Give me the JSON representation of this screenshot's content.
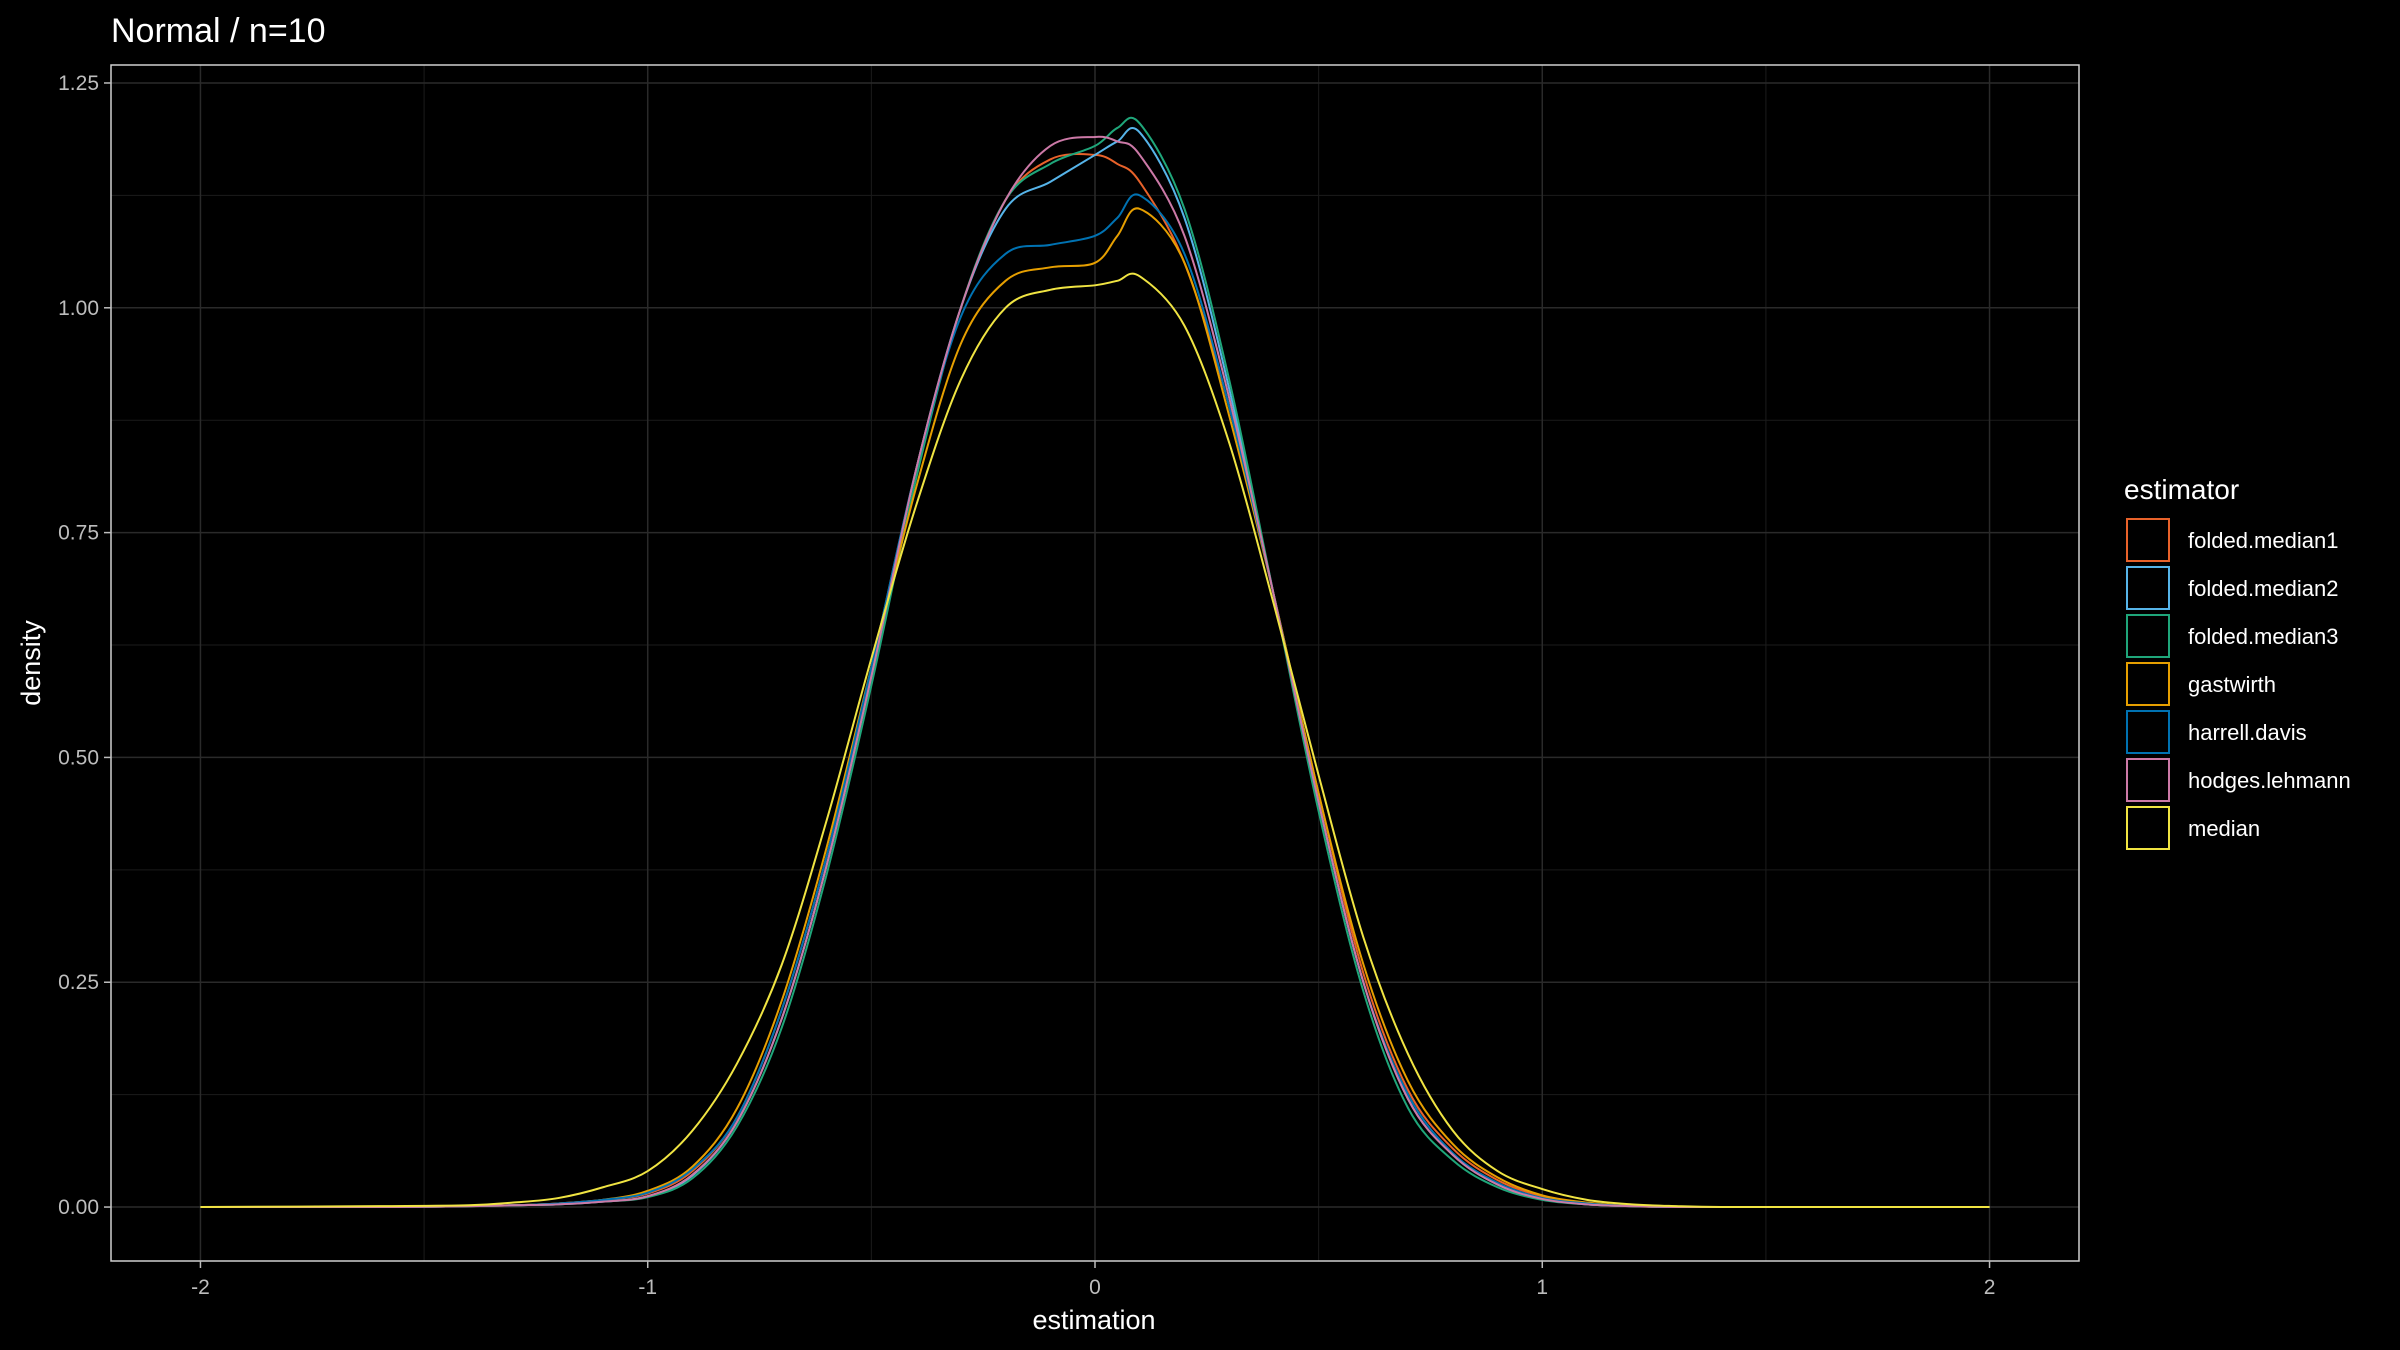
{
  "chart_data": {
    "type": "line",
    "title": "Normal / n=10",
    "xlabel": "estimation",
    "ylabel": "density",
    "xlim": [
      -2.2,
      2.2
    ],
    "ylim": [
      -0.06,
      1.27
    ],
    "x_ticks": [
      -2,
      -1,
      0,
      1,
      2
    ],
    "x_tick_labels": [
      "-2",
      "-1",
      "0",
      "1",
      "2"
    ],
    "y_ticks": [
      0,
      0.25,
      0.5,
      0.75,
      1.0,
      1.25
    ],
    "y_tick_labels": [
      "0.00",
      "0.25",
      "0.50",
      "0.75",
      "1.00",
      "1.25"
    ],
    "grid": true,
    "legend": {
      "title": "estimator",
      "position": "right"
    },
    "x": [
      -2.0,
      -1.6,
      -1.4,
      -1.3,
      -1.2,
      -1.1,
      -1.0,
      -0.9,
      -0.8,
      -0.7,
      -0.6,
      -0.5,
      -0.4,
      -0.3,
      -0.2,
      -0.1,
      0.0,
      0.05,
      0.1,
      0.2,
      0.3,
      0.4,
      0.5,
      0.6,
      0.7,
      0.8,
      0.9,
      1.0,
      1.1,
      1.2,
      1.3,
      1.4,
      1.6,
      2.0
    ],
    "series": [
      {
        "name": "folded.median1",
        "color": "#e8622a",
        "values": [
          0,
          0,
          0.001,
          0.002,
          0.004,
          0.008,
          0.015,
          0.04,
          0.1,
          0.22,
          0.39,
          0.6,
          0.82,
          1.0,
          1.12,
          1.165,
          1.17,
          1.16,
          1.14,
          1.05,
          0.89,
          0.68,
          0.46,
          0.26,
          0.13,
          0.065,
          0.03,
          0.012,
          0.004,
          0.001,
          0,
          0,
          0,
          0
        ]
      },
      {
        "name": "folded.median2",
        "color": "#56b4e9",
        "values": [
          0,
          0,
          0.001,
          0.002,
          0.003,
          0.006,
          0.012,
          0.035,
          0.095,
          0.21,
          0.38,
          0.59,
          0.82,
          1.0,
          1.11,
          1.14,
          1.17,
          1.185,
          1.195,
          1.1,
          0.91,
          0.68,
          0.45,
          0.25,
          0.12,
          0.058,
          0.025,
          0.009,
          0.003,
          0.001,
          0,
          0,
          0,
          0
        ]
      },
      {
        "name": "folded.median3",
        "color": "#1fa67a",
        "values": [
          0,
          0,
          0.001,
          0.002,
          0.003,
          0.006,
          0.011,
          0.032,
          0.09,
          0.2,
          0.37,
          0.58,
          0.81,
          1.0,
          1.12,
          1.16,
          1.18,
          1.2,
          1.205,
          1.11,
          0.92,
          0.68,
          0.44,
          0.24,
          0.11,
          0.052,
          0.022,
          0.008,
          0.003,
          0.001,
          0,
          0,
          0,
          0
        ]
      },
      {
        "name": "gastwirth",
        "color": "#e69f00",
        "values": [
          0,
          0,
          0.001,
          0.002,
          0.004,
          0.008,
          0.018,
          0.045,
          0.11,
          0.23,
          0.4,
          0.6,
          0.8,
          0.96,
          1.03,
          1.045,
          1.05,
          1.08,
          1.11,
          1.05,
          0.88,
          0.68,
          0.46,
          0.27,
          0.14,
          0.07,
          0.033,
          0.013,
          0.005,
          0.001,
          0,
          0,
          0,
          0
        ]
      },
      {
        "name": "harrell.davis",
        "color": "#0072b2",
        "values": [
          0,
          0,
          0.001,
          0.002,
          0.004,
          0.008,
          0.016,
          0.042,
          0.1,
          0.22,
          0.39,
          0.6,
          0.82,
          0.99,
          1.06,
          1.07,
          1.08,
          1.1,
          1.125,
          1.06,
          0.89,
          0.68,
          0.45,
          0.25,
          0.125,
          0.06,
          0.027,
          0.01,
          0.004,
          0.001,
          0,
          0,
          0,
          0
        ]
      },
      {
        "name": "hodges.lehmann",
        "color": "#cc79a7",
        "values": [
          0,
          0,
          0.001,
          0.002,
          0.003,
          0.006,
          0.012,
          0.036,
          0.095,
          0.21,
          0.38,
          0.59,
          0.82,
          1.0,
          1.12,
          1.18,
          1.19,
          1.185,
          1.17,
          1.08,
          0.9,
          0.68,
          0.45,
          0.25,
          0.12,
          0.058,
          0.025,
          0.009,
          0.003,
          0.001,
          0,
          0,
          0,
          0
        ]
      },
      {
        "name": "median",
        "color": "#f0e442",
        "values": [
          0,
          0.001,
          0.002,
          0.005,
          0.01,
          0.022,
          0.04,
          0.085,
          0.16,
          0.27,
          0.43,
          0.61,
          0.78,
          0.92,
          1.0,
          1.02,
          1.025,
          1.03,
          1.035,
          0.98,
          0.85,
          0.67,
          0.48,
          0.3,
          0.17,
          0.085,
          0.04,
          0.02,
          0.008,
          0.003,
          0.001,
          0,
          0,
          0
        ]
      }
    ]
  }
}
